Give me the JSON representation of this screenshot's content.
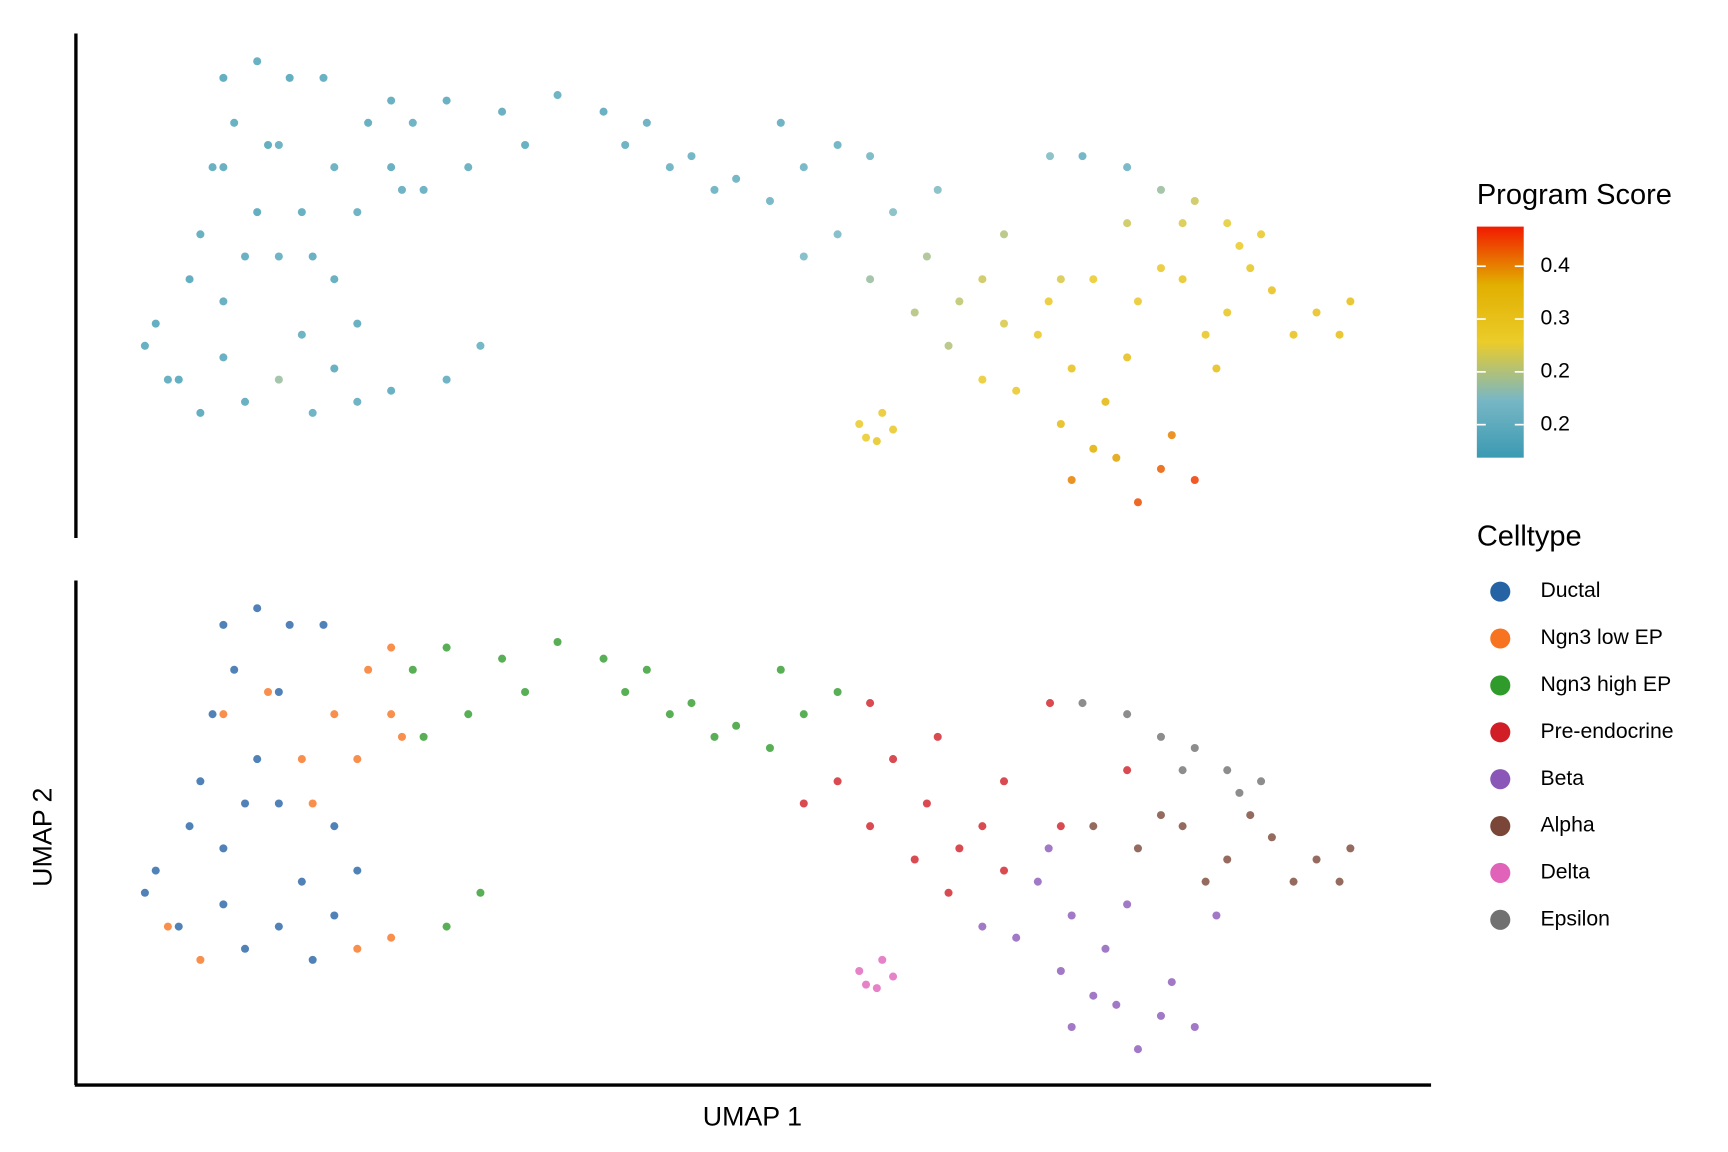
{
  "chart_data": [
    {
      "type": "scatter",
      "x": [
        13.4,
        15.8,
        11.7,
        15.0,
        10.1,
        13.4,
        9.2,
        15.0,
        19.1,
        5.9,
        10.9,
        5.1,
        7.6,
        12.5,
        17.5,
        19.1,
        20.8,
        15.0,
        10.9,
        8.4,
        12.5,
        16.7,
        18.3,
        10.9,
        21.6,
        19.1,
        23.3,
        20.8,
        16.7,
        14.2,
        23.3,
        10.9,
        20.8,
        23.3,
        9.2,
        6.8,
        17.5,
        24.1,
        24.9,
        27.4,
        31.5,
        35.6,
        39.0,
        42.2,
        45.5,
        48.8,
        52.1,
        53.8,
        56.3,
        51.3,
        47.2,
        33.2,
        29.0,
        25.7,
        40.6,
        43.9,
        27.4,
        29.9,
        58.7,
        60.4,
        56.3,
        53.8,
        58.7,
        62.9,
        65.3,
        62.0,
        67.0,
        68.6,
        64.5,
        63.7,
        68.6,
        72.0,
        77.7,
        72.8,
        71.1,
        73.6,
        69.5,
        72.8,
        76.1,
        76.9,
        73.6,
        80.2,
        82.7,
        78.5,
        75.2,
        81.0,
        71.9,
        67.0,
        84.3,
        77.7,
        75.2,
        78.5,
        81.8,
        85.1,
        88.4,
        91.7,
        94.2,
        90.0,
        83.5,
        80.2,
        86.8,
        93.4,
        57.9,
        59.6,
        59.2,
        60.4,
        58.4,
        74.4,
        77.7,
        80.2,
        82.7,
        85.1,
        87.6,
        86.0,
        81.8
      ],
      "y": [
        94.5,
        91.2,
        82.3,
        77.9,
        73.5,
        64.6,
        60.2,
        55.8,
        51.3,
        42.5,
        46.9,
        38.1,
        31.4,
        27.0,
        24.8,
        33.6,
        42.5,
        31.4,
        35.8,
        51.3,
        55.8,
        40.3,
        91.2,
        91.2,
        82.3,
        73.5,
        73.5,
        64.6,
        64.6,
        77.9,
        86.7,
        73.5,
        27.0,
        29.2,
        24.8,
        31.4,
        55.8,
        69.0,
        82.3,
        86.7,
        84.5,
        87.8,
        84.5,
        82.3,
        75.7,
        71.2,
        82.3,
        73.5,
        77.9,
        66.8,
        69.0,
        77.9,
        73.5,
        69.0,
        77.9,
        73.5,
        31.4,
        38.1,
        75.7,
        64.6,
        60.2,
        55.8,
        51.3,
        55.8,
        46.9,
        44.7,
        51.3,
        42.5,
        38.1,
        69.0,
        60.2,
        75.7,
        62.4,
        51.3,
        40.3,
        33.6,
        29.2,
        22.6,
        27.0,
        15.9,
        11.5,
        13.7,
        11.5,
        7.1,
        17.7,
        20.4,
        46.9,
        31.4,
        33.6,
        35.8,
        51.3,
        46.9,
        51.3,
        44.7,
        49.1,
        44.7,
        46.9,
        40.3,
        40.3,
        53.5,
        53.5,
        40.3,
        22.6,
        24.8,
        19.2,
        21.5,
        19.9,
        75.7,
        73.5,
        69.0,
        66.8,
        62.4,
        60.2,
        57.9,
        62.4
      ],
      "values": [
        0.14,
        0.13,
        0.14,
        0.15,
        0.14,
        0.13,
        0.14,
        0.15,
        0.14,
        0.13,
        0.14,
        0.14,
        0.13,
        0.14,
        0.15,
        0.14,
        0.14,
        0.22,
        0.14,
        0.13,
        0.14,
        0.15,
        0.14,
        0.13,
        0.14,
        0.15,
        0.14,
        0.15,
        0.14,
        0.13,
        0.14,
        0.14,
        0.15,
        0.14,
        0.13,
        0.14,
        0.14,
        0.15,
        0.15,
        0.14,
        0.14,
        0.15,
        0.14,
        0.15,
        0.16,
        0.16,
        0.15,
        0.17,
        0.16,
        0.17,
        0.16,
        0.14,
        0.15,
        0.15,
        0.15,
        0.16,
        0.15,
        0.16,
        0.18,
        0.2,
        0.19,
        0.19,
        0.22,
        0.23,
        0.25,
        0.24,
        0.26,
        0.27,
        0.24,
        0.2,
        0.24,
        0.2,
        0.26,
        0.27,
        0.3,
        0.32,
        0.3,
        0.34,
        0.35,
        0.38,
        0.4,
        0.42,
        0.44,
        0.43,
        0.37,
        0.4,
        0.3,
        0.29,
        0.33,
        0.33,
        0.29,
        0.3,
        0.31,
        0.31,
        0.32,
        0.32,
        0.33,
        0.32,
        0.31,
        0.3,
        0.31,
        0.33,
        0.29,
        0.3,
        0.31,
        0.3,
        0.29,
        0.16,
        0.17,
        0.22,
        0.26,
        0.28,
        0.3,
        0.29,
        0.27
      ],
      "xlim": [
        0,
        100
      ],
      "ylim": [
        0,
        100
      ],
      "colorbar": {
        "title": "Program Score",
        "lim": [
          0.11,
          0.46
        ],
        "ticks": [
          0.4,
          {
            "value": 0.32,
            "label": "0.3"
          },
          {
            "value": 0.24,
            "label": "0.2"
          },
          {
            "value": 0.16,
            "label": "0.2"
          }
        ],
        "colors": [
          "#3B9AB2",
          "#78B7C5",
          "#EBCC2A",
          "#E1AF00",
          "#F21A00"
        ]
      }
    },
    {
      "type": "scatter",
      "xlabel": "UMAP 1",
      "ylabel": "UMAP 2",
      "legend_title": "Celltype",
      "xlim": [
        0,
        100
      ],
      "ylim": [
        0,
        100
      ],
      "series": [
        {
          "name": "Ductal",
          "color": "#2563a5",
          "x": [
            13.4,
            15.8,
            11.7,
            15.0,
            10.1,
            13.4,
            9.2,
            15.0,
            19.1,
            5.9,
            10.9,
            5.1,
            7.6,
            12.5,
            17.5,
            19.1,
            20.8,
            15.0,
            10.9,
            8.4,
            12.5,
            16.7,
            18.3,
            10.9
          ],
          "y": [
            94.5,
            91.2,
            82.3,
            77.9,
            73.5,
            64.6,
            60.2,
            55.8,
            51.3,
            42.5,
            46.9,
            38.1,
            31.4,
            27.0,
            24.8,
            33.6,
            42.5,
            31.4,
            35.8,
            51.3,
            55.8,
            40.3,
            91.2,
            91.2
          ]
        },
        {
          "name": "Ngn3 low EP",
          "color": "#f7731f",
          "x": [
            21.6,
            19.1,
            23.3,
            20.8,
            16.7,
            14.2,
            23.3,
            10.9,
            20.8,
            23.3,
            9.2,
            6.8,
            17.5,
            24.1
          ],
          "y": [
            82.3,
            73.5,
            73.5,
            64.6,
            64.6,
            77.9,
            86.7,
            73.5,
            27.0,
            29.2,
            24.8,
            31.4,
            55.8,
            69.0
          ]
        },
        {
          "name": "Ngn3 high EP",
          "color": "#2f9b2a",
          "x": [
            24.9,
            27.4,
            31.5,
            35.6,
            39.0,
            42.2,
            45.5,
            48.8,
            52.1,
            53.8,
            56.3,
            51.3,
            47.2,
            33.2,
            29.0,
            25.7,
            40.6,
            43.9,
            27.4,
            29.9
          ],
          "y": [
            82.3,
            86.7,
            84.5,
            87.8,
            84.5,
            82.3,
            75.7,
            71.2,
            82.3,
            73.5,
            77.9,
            66.8,
            69.0,
            77.9,
            73.5,
            69.0,
            77.9,
            73.5,
            31.4,
            38.1
          ]
        },
        {
          "name": "Pre-endocrine",
          "color": "#d11d26",
          "x": [
            58.7,
            60.4,
            56.3,
            53.8,
            58.7,
            62.9,
            65.3,
            62.0,
            67.0,
            68.6,
            64.5,
            63.7,
            68.6,
            72.0,
            77.7,
            72.8
          ],
          "y": [
            75.7,
            64.6,
            60.2,
            55.8,
            51.3,
            55.8,
            46.9,
            44.7,
            51.3,
            42.5,
            38.1,
            69.0,
            60.2,
            75.7,
            62.4,
            51.3
          ]
        },
        {
          "name": "Beta",
          "color": "#8a57b8",
          "x": [
            71.1,
            73.6,
            69.5,
            72.8,
            76.1,
            76.9,
            73.6,
            80.2,
            82.7,
            78.5,
            75.2,
            81.0,
            71.9,
            67.0,
            84.3,
            77.7
          ],
          "y": [
            40.3,
            33.6,
            29.2,
            22.6,
            27.0,
            15.9,
            11.5,
            13.7,
            11.5,
            7.1,
            17.7,
            20.4,
            46.9,
            31.4,
            33.6,
            35.8
          ]
        },
        {
          "name": "Alpha",
          "color": "#7a4638",
          "x": [
            75.2,
            78.5,
            81.8,
            85.1,
            88.4,
            91.7,
            94.2,
            90.0,
            83.5,
            80.2,
            86.8,
            93.4
          ],
          "y": [
            51.3,
            46.9,
            51.3,
            44.7,
            49.1,
            44.7,
            46.9,
            40.3,
            40.3,
            53.5,
            53.5,
            40.3
          ]
        },
        {
          "name": "Delta",
          "color": "#e063b9",
          "x": [
            57.9,
            59.6,
            59.2,
            60.4,
            58.4
          ],
          "y": [
            22.6,
            24.8,
            19.2,
            21.5,
            19.9
          ]
        },
        {
          "name": "Epsilon",
          "color": "#717171",
          "x": [
            74.4,
            77.7,
            80.2,
            82.7,
            85.1,
            87.6,
            86.0,
            81.8
          ],
          "y": [
            75.7,
            73.5,
            69.0,
            66.8,
            62.4,
            60.2,
            57.9,
            62.4
          ]
        }
      ]
    }
  ]
}
